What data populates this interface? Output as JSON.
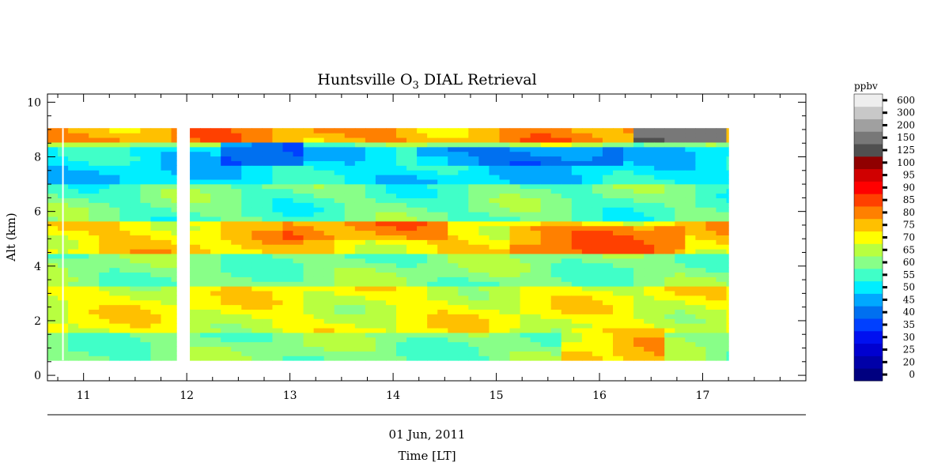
{
  "chart_data": {
    "type": "heatmap",
    "title": "Huntsville O",
    "title_subscript": "3",
    "title_suffix": " DIAL Retrieval",
    "ylabel": "Alt (km)",
    "xlabel": "Time [LT]",
    "date_label": "01 Jun, 2011",
    "x_ticks": [
      "11",
      "12",
      "13",
      "14",
      "15",
      "16",
      "17"
    ],
    "y_ticks": [
      "0",
      "2",
      "4",
      "6",
      "8",
      "10"
    ],
    "xlim": [
      10.65,
      18.0
    ],
    "ylim": [
      -0.2,
      10.3
    ],
    "grid": false,
    "colorbar": {
      "unit": "ppbv",
      "levels": [
        "0",
        "20",
        "25",
        "30",
        "35",
        "40",
        "45",
        "50",
        "55",
        "60",
        "65",
        "70",
        "75",
        "80",
        "85",
        "90",
        "95",
        "100",
        "125",
        "150",
        "200",
        "300",
        "600"
      ],
      "colors": [
        "#000080",
        "#0000a8",
        "#0000d0",
        "#0010f0",
        "#0040ff",
        "#0070f0",
        "#00a8ff",
        "#00eeff",
        "#40ffc8",
        "#88ff88",
        "#b8ff40",
        "#ffff00",
        "#ffc000",
        "#ff8000",
        "#ff4000",
        "#ff0000",
        "#d00000",
        "#900000",
        "#505050",
        "#787878",
        "#a0a0a0",
        "#c8c8c8",
        "#eeeeee"
      ]
    },
    "time_segments": [
      [
        10.65,
        11.9
      ],
      [
        12.03,
        17.25
      ]
    ],
    "data_gaps": [
      10.8
    ],
    "altitude_range_km": [
      0.55,
      9.05
    ],
    "ozone_layers_ppbv": [
      {
        "z0": 0.55,
        "z1": 1.5,
        "base": 62
      },
      {
        "z0": 1.5,
        "z1": 3.3,
        "base": 71
      },
      {
        "z0": 3.3,
        "z1": 4.5,
        "base": 62
      },
      {
        "z0": 4.5,
        "z1": 5.7,
        "base": 75
      },
      {
        "z0": 5.7,
        "z1": 7.0,
        "base": 60
      },
      {
        "z0": 7.0,
        "z1": 8.3,
        "base": 52
      },
      {
        "z0": 8.3,
        "z1": 8.6,
        "base": 64
      },
      {
        "z0": 8.6,
        "z1": 9.05,
        "base": 80
      }
    ],
    "features_ppbv": [
      {
        "t0": 15.6,
        "t1": 16.6,
        "z0": 0.6,
        "z1": 1.8,
        "value": 76
      },
      {
        "t0": 15.1,
        "t1": 16.8,
        "z0": 4.4,
        "z1": 5.4,
        "value": 83
      },
      {
        "t0": 12.9,
        "t1": 14.5,
        "z0": 4.9,
        "z1": 5.6,
        "value": 80
      },
      {
        "t0": 12.3,
        "t1": 13.1,
        "z0": 7.7,
        "z1": 8.6,
        "value": 42
      },
      {
        "t0": 14.2,
        "t1": 16.2,
        "z0": 7.7,
        "z1": 8.4,
        "value": 44
      },
      {
        "t0": 16.3,
        "t1": 17.25,
        "z0": 8.6,
        "z1": 9.05,
        "value": 150
      },
      {
        "t0": 10.65,
        "t1": 11.9,
        "z0": 1.5,
        "z1": 3.3,
        "value": 71
      }
    ]
  }
}
